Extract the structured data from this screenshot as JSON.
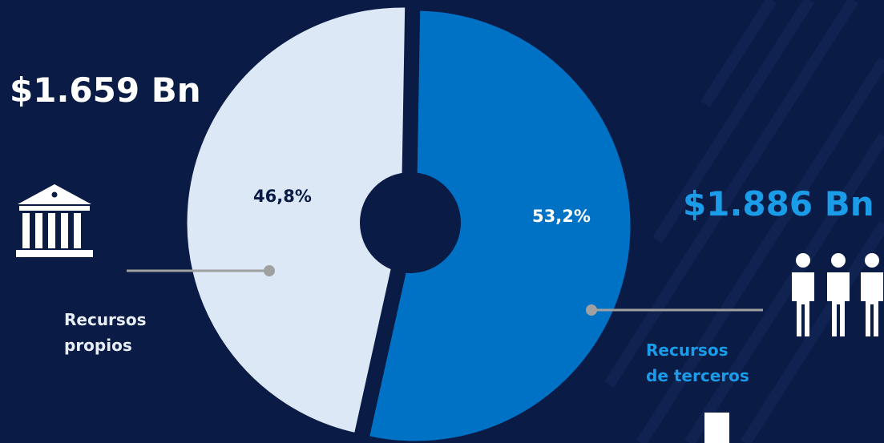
{
  "colors": {
    "background": "#0a1b45",
    "propios": "#dde8f6",
    "terceros": "#0072c6",
    "accent": "#1a9ce8",
    "connector": "#a0a0a0"
  },
  "icons": {
    "left": "bank-building-icon",
    "right": "people-group-icon"
  },
  "labels": {
    "left_amount": "$1.659 Bn",
    "right_amount": "$1.886 Bn",
    "left_pct": "46,8%",
    "right_pct": "53,2%",
    "left_category_line1": "Recursos",
    "left_category_line2": "propios",
    "right_category_line1": "Recursos",
    "right_category_line2": "de terceros"
  },
  "chart_data": {
    "type": "pie",
    "donut": true,
    "categories": [
      "Recursos propios",
      "Recursos de terceros"
    ],
    "values": [
      46.8,
      53.2
    ],
    "amounts": [
      "$1.659 Bn",
      "$1.886 Bn"
    ],
    "exploded": "Recursos de terceros"
  }
}
